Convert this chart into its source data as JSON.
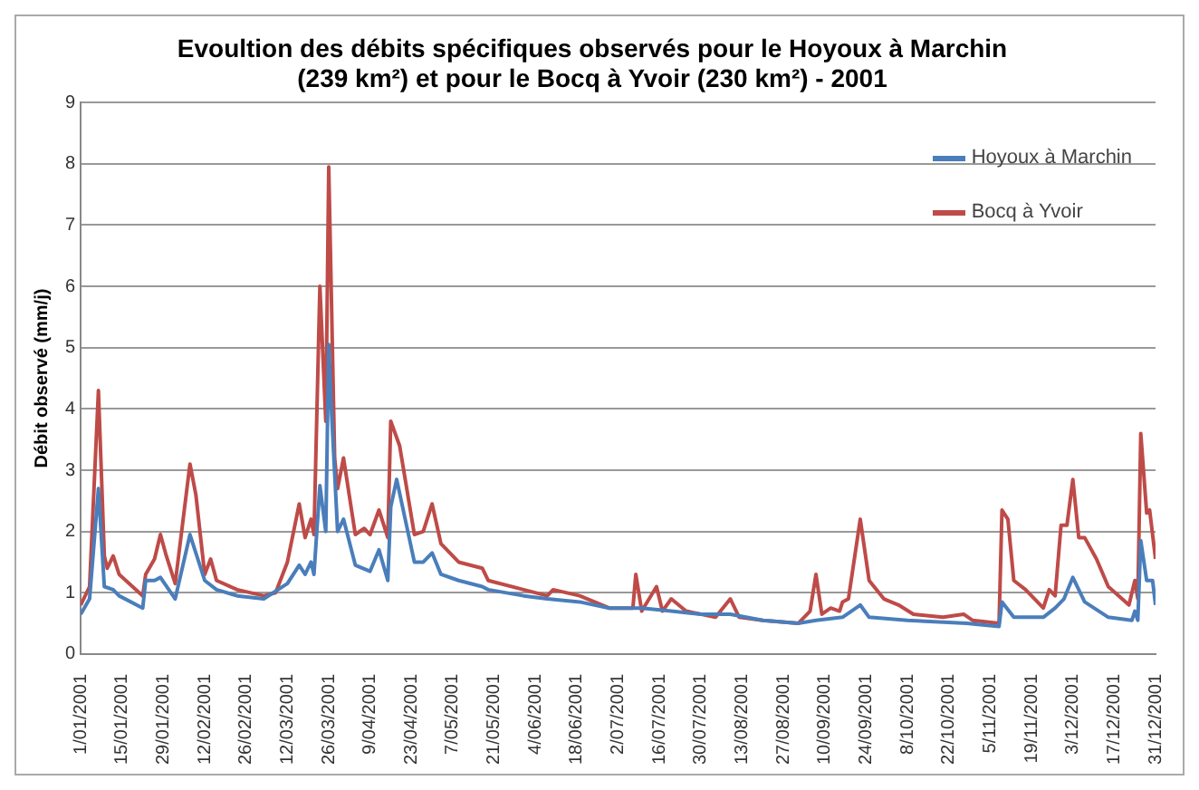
{
  "chart_data": {
    "type": "line",
    "title": [
      "Evoultion des débits spécifiques observés pour le Hoyoux à Marchin",
      "(239 km²) et pour le Bocq à Yvoir (230 km²) - 2001"
    ],
    "ylabel": "Débit observé (mm/j)",
    "xlim": [
      "2001-01-01",
      "2001-12-31"
    ],
    "xticks": [
      {
        "value": "2001-01-01",
        "label": "1/01/2001"
      },
      {
        "value": "2001-01-15",
        "label": "15/01/2001"
      },
      {
        "value": "2001-01-29",
        "label": "29/01/2001"
      },
      {
        "value": "2001-02-12",
        "label": "12/02/2001"
      },
      {
        "value": "2001-02-26",
        "label": "26/02/2001"
      },
      {
        "value": "2001-03-12",
        "label": "12/03/2001"
      },
      {
        "value": "2001-03-26",
        "label": "26/03/2001"
      },
      {
        "value": "2001-04-09",
        "label": "9/04/2001"
      },
      {
        "value": "2001-04-23",
        "label": "23/04/2001"
      },
      {
        "value": "2001-05-07",
        "label": "7/05/2001"
      },
      {
        "value": "2001-05-21",
        "label": "21/05/2001"
      },
      {
        "value": "2001-06-04",
        "label": "4/06/2001"
      },
      {
        "value": "2001-06-18",
        "label": "18/06/2001"
      },
      {
        "value": "2001-07-02",
        "label": "2/07/2001"
      },
      {
        "value": "2001-07-16",
        "label": "16/07/2001"
      },
      {
        "value": "2001-07-30",
        "label": "30/07/2001"
      },
      {
        "value": "2001-08-13",
        "label": "13/08/2001"
      },
      {
        "value": "2001-08-27",
        "label": "27/08/2001"
      },
      {
        "value": "2001-09-10",
        "label": "10/09/2001"
      },
      {
        "value": "2001-09-24",
        "label": "24/09/2001"
      },
      {
        "value": "2001-10-08",
        "label": "8/10/2001"
      },
      {
        "value": "2001-10-22",
        "label": "22/10/2001"
      },
      {
        "value": "2001-11-05",
        "label": "5/11/2001"
      },
      {
        "value": "2001-11-19",
        "label": "19/11/2001"
      },
      {
        "value": "2001-12-03",
        "label": "3/12/2001"
      },
      {
        "value": "2001-12-17",
        "label": "17/12/2001"
      },
      {
        "value": "2001-12-31",
        "label": "31/12/2001"
      }
    ],
    "ylim": [
      0,
      9
    ],
    "yticks": [
      0,
      1,
      2,
      3,
      4,
      5,
      6,
      7,
      8,
      9
    ],
    "grid": "y",
    "legend": "top right",
    "marker": "none",
    "line_style": "solid",
    "series": [
      {
        "name": "Hoyoux à Marchin",
        "color": "#4a7ebb",
        "x": [
          "2001-01-01",
          "2001-01-04",
          "2001-01-07",
          "2001-01-09",
          "2001-01-12",
          "2001-01-14",
          "2001-01-22",
          "2001-01-23",
          "2001-01-26",
          "2001-01-28",
          "2001-02-02",
          "2001-02-07",
          "2001-02-12",
          "2001-02-16",
          "2001-02-23",
          "2001-03-04",
          "2001-03-12",
          "2001-03-16",
          "2001-03-18",
          "2001-03-20",
          "2001-03-21",
          "2001-03-23",
          "2001-03-25",
          "2001-03-26",
          "2001-03-27",
          "2001-03-29",
          "2001-03-31",
          "2001-04-04",
          "2001-04-09",
          "2001-04-12",
          "2001-04-15",
          "2001-04-16",
          "2001-04-18",
          "2001-04-24",
          "2001-04-27",
          "2001-04-30",
          "2001-05-03",
          "2001-05-09",
          "2001-05-17",
          "2001-05-19",
          "2001-05-31",
          "2001-06-08",
          "2001-06-19",
          "2001-06-29",
          "2001-07-10",
          "2001-07-20",
          "2001-07-30",
          "2001-08-09",
          "2001-08-20",
          "2001-09-01",
          "2001-09-07",
          "2001-09-16",
          "2001-09-22",
          "2001-09-25",
          "2001-10-08",
          "2001-10-28",
          "2001-11-08",
          "2001-11-09",
          "2001-11-13",
          "2001-11-23",
          "2001-11-27",
          "2001-11-30",
          "2001-12-03",
          "2001-12-07",
          "2001-12-15",
          "2001-12-23",
          "2001-12-24",
          "2001-12-25",
          "2001-12-26",
          "2001-12-28",
          "2001-12-30",
          "2001-12-31"
        ],
        "values": [
          0.65,
          0.9,
          2.7,
          1.1,
          1.05,
          0.95,
          0.75,
          1.2,
          1.2,
          1.25,
          0.9,
          1.95,
          1.2,
          1.05,
          0.95,
          0.9,
          1.15,
          1.45,
          1.3,
          1.5,
          1.3,
          2.75,
          2.0,
          5.05,
          3.9,
          2.0,
          2.2,
          1.45,
          1.35,
          1.7,
          1.2,
          2.4,
          2.85,
          1.5,
          1.5,
          1.65,
          1.3,
          1.2,
          1.1,
          1.05,
          0.95,
          0.9,
          0.85,
          0.75,
          0.75,
          0.7,
          0.65,
          0.65,
          0.55,
          0.5,
          0.55,
          0.6,
          0.8,
          0.6,
          0.55,
          0.5,
          0.45,
          0.85,
          0.6,
          0.6,
          0.75,
          0.9,
          1.25,
          0.85,
          0.6,
          0.55,
          0.7,
          0.55,
          1.85,
          1.2,
          1.2,
          0.8
        ]
      },
      {
        "name": "Bocq à Yvoir",
        "color": "#be4b48",
        "x": [
          "2001-01-01",
          "2001-01-04",
          "2001-01-07",
          "2001-01-09",
          "2001-01-10",
          "2001-01-12",
          "2001-01-14",
          "2001-01-22",
          "2001-01-23",
          "2001-01-26",
          "2001-01-28",
          "2001-01-30",
          "2001-02-02",
          "2001-02-07",
          "2001-02-09",
          "2001-02-12",
          "2001-02-14",
          "2001-02-16",
          "2001-02-23",
          "2001-03-04",
          "2001-03-08",
          "2001-03-12",
          "2001-03-16",
          "2001-03-18",
          "2001-03-20",
          "2001-03-21",
          "2001-03-23",
          "2001-03-25",
          "2001-03-26",
          "2001-03-28",
          "2001-03-29",
          "2001-03-31",
          "2001-04-04",
          "2001-04-07",
          "2001-04-09",
          "2001-04-12",
          "2001-04-15",
          "2001-04-16",
          "2001-04-19",
          "2001-04-24",
          "2001-04-27",
          "2001-04-30",
          "2001-05-03",
          "2001-05-09",
          "2001-05-17",
          "2001-05-19",
          "2001-05-31",
          "2001-06-08",
          "2001-06-10",
          "2001-06-19",
          "2001-06-29",
          "2001-07-07",
          "2001-07-08",
          "2001-07-10",
          "2001-07-15",
          "2001-07-17",
          "2001-07-20",
          "2001-07-25",
          "2001-08-04",
          "2001-08-09",
          "2001-08-12",
          "2001-08-20",
          "2001-09-01",
          "2001-09-05",
          "2001-09-07",
          "2001-09-09",
          "2001-09-12",
          "2001-09-15",
          "2001-09-16",
          "2001-09-18",
          "2001-09-22",
          "2001-09-25",
          "2001-09-30",
          "2001-10-05",
          "2001-10-10",
          "2001-10-20",
          "2001-10-27",
          "2001-10-30",
          "2001-11-08",
          "2001-11-09",
          "2001-11-11",
          "2001-11-13",
          "2001-11-17",
          "2001-11-23",
          "2001-11-25",
          "2001-11-27",
          "2001-11-29",
          "2001-12-01",
          "2001-12-03",
          "2001-12-05",
          "2001-12-07",
          "2001-12-11",
          "2001-12-15",
          "2001-12-22",
          "2001-12-24",
          "2001-12-25",
          "2001-12-26",
          "2001-12-28",
          "2001-12-29",
          "2001-12-31"
        ],
        "values": [
          0.8,
          1.1,
          4.3,
          1.6,
          1.4,
          1.6,
          1.3,
          0.95,
          1.3,
          1.55,
          1.95,
          1.6,
          1.15,
          3.1,
          2.6,
          1.3,
          1.55,
          1.2,
          1.05,
          0.95,
          1.0,
          1.5,
          2.45,
          1.9,
          2.2,
          1.95,
          6.0,
          3.8,
          7.95,
          3.2,
          2.7,
          3.2,
          1.95,
          2.05,
          1.95,
          2.35,
          1.9,
          3.8,
          3.4,
          1.95,
          2.0,
          2.45,
          1.8,
          1.5,
          1.4,
          1.2,
          1.05,
          0.95,
          1.05,
          0.95,
          0.75,
          0.75,
          1.3,
          0.7,
          1.1,
          0.7,
          0.9,
          0.7,
          0.6,
          0.9,
          0.6,
          0.55,
          0.5,
          0.7,
          1.3,
          0.65,
          0.75,
          0.7,
          0.85,
          0.9,
          2.2,
          1.2,
          0.9,
          0.8,
          0.65,
          0.6,
          0.65,
          0.55,
          0.5,
          2.35,
          2.2,
          1.2,
          1.05,
          0.75,
          1.05,
          0.95,
          2.1,
          2.1,
          2.85,
          1.9,
          1.9,
          1.55,
          1.1,
          0.8,
          1.2,
          0.9,
          3.6,
          2.3,
          2.35,
          1.55
        ]
      }
    ]
  }
}
